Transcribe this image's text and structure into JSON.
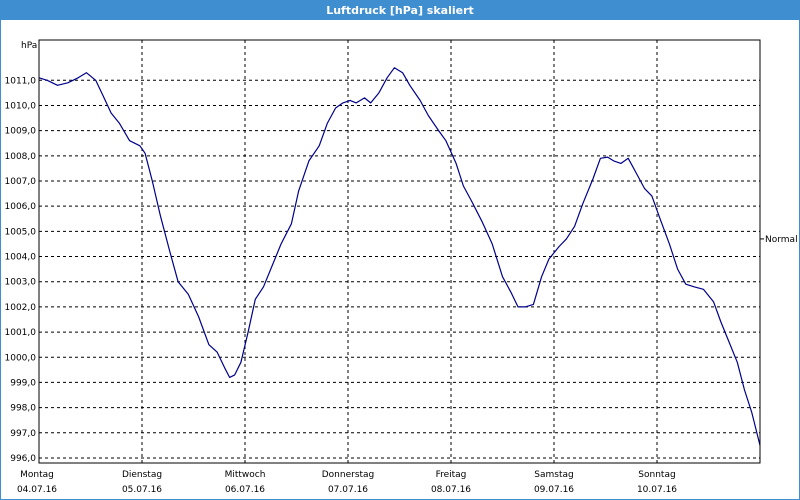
{
  "window": {
    "title": "Luftdruck [hPa] skaliert"
  },
  "chart_data": {
    "type": "line",
    "title": "Luftdruck [hPa] skaliert",
    "ylabel": "hPa",
    "ylim": [
      995.8,
      1012.6
    ],
    "yticks": [
      "996,0",
      "997,0",
      "998,0",
      "999,0",
      "1000,0",
      "1001,0",
      "1002,0",
      "1003,0",
      "1004,0",
      "1005,0",
      "1006,0",
      "1007,0",
      "1008,0",
      "1009,0",
      "1010,0",
      "1011,0"
    ],
    "ytick_values": [
      996,
      997,
      998,
      999,
      1000,
      1001,
      1002,
      1003,
      1004,
      1005,
      1006,
      1007,
      1008,
      1009,
      1010,
      1011
    ],
    "xlim": [
      0,
      7
    ],
    "x_categories": [
      {
        "day": "Montag",
        "date": "04.07.16"
      },
      {
        "day": "Dienstag",
        "date": "05.07.16"
      },
      {
        "day": "Mittwoch",
        "date": "06.07.16"
      },
      {
        "day": "Donnerstag",
        "date": "07.07.16"
      },
      {
        "day": "Freitag",
        "date": "08.07.16"
      },
      {
        "day": "Samstag",
        "date": "09.07.16"
      },
      {
        "day": "Sonntag",
        "date": "10.07.16"
      }
    ],
    "reference_line": {
      "label": "Normal",
      "value": 1004.7
    },
    "grid": true,
    "series": [
      {
        "color": "#00008b",
        "points": [
          [
            0.0,
            1011.1
          ],
          [
            0.08,
            1011.0
          ],
          [
            0.18,
            1010.8
          ],
          [
            0.28,
            1010.9
          ],
          [
            0.38,
            1011.1
          ],
          [
            0.46,
            1011.3
          ],
          [
            0.55,
            1011.0
          ],
          [
            0.62,
            1010.4
          ],
          [
            0.7,
            1009.7
          ],
          [
            0.78,
            1009.3
          ],
          [
            0.88,
            1008.6
          ],
          [
            0.98,
            1008.4
          ],
          [
            1.03,
            1008.1
          ],
          [
            1.1,
            1007.0
          ],
          [
            1.18,
            1005.6
          ],
          [
            1.27,
            1004.2
          ],
          [
            1.35,
            1003.0
          ],
          [
            1.45,
            1002.5
          ],
          [
            1.55,
            1001.6
          ],
          [
            1.65,
            1000.5
          ],
          [
            1.73,
            1000.2
          ],
          [
            1.8,
            999.6
          ],
          [
            1.85,
            999.2
          ],
          [
            1.9,
            999.3
          ],
          [
            1.96,
            999.8
          ],
          [
            2.03,
            1001.0
          ],
          [
            2.1,
            1002.3
          ],
          [
            2.18,
            1002.8
          ],
          [
            2.27,
            1003.7
          ],
          [
            2.35,
            1004.5
          ],
          [
            2.45,
            1005.3
          ],
          [
            2.52,
            1006.6
          ],
          [
            2.62,
            1007.8
          ],
          [
            2.72,
            1008.4
          ],
          [
            2.8,
            1009.3
          ],
          [
            2.88,
            1009.9
          ],
          [
            2.95,
            1010.1
          ],
          [
            3.02,
            1010.2
          ],
          [
            3.08,
            1010.1
          ],
          [
            3.16,
            1010.3
          ],
          [
            3.22,
            1010.1
          ],
          [
            3.3,
            1010.5
          ],
          [
            3.38,
            1011.1
          ],
          [
            3.45,
            1011.5
          ],
          [
            3.53,
            1011.3
          ],
          [
            3.6,
            1010.8
          ],
          [
            3.7,
            1010.2
          ],
          [
            3.78,
            1009.6
          ],
          [
            3.88,
            1009.0
          ],
          [
            3.95,
            1008.6
          ],
          [
            4.05,
            1007.7
          ],
          [
            4.12,
            1006.8
          ],
          [
            4.2,
            1006.2
          ],
          [
            4.3,
            1005.4
          ],
          [
            4.4,
            1004.5
          ],
          [
            4.5,
            1003.2
          ],
          [
            4.58,
            1002.6
          ],
          [
            4.65,
            1002.0
          ],
          [
            4.72,
            1002.0
          ],
          [
            4.8,
            1002.1
          ],
          [
            4.88,
            1003.2
          ],
          [
            4.95,
            1003.9
          ],
          [
            5.05,
            1004.4
          ],
          [
            5.12,
            1004.7
          ],
          [
            5.2,
            1005.2
          ],
          [
            5.28,
            1006.1
          ],
          [
            5.38,
            1007.1
          ],
          [
            5.45,
            1007.9
          ],
          [
            5.52,
            1007.95
          ],
          [
            5.58,
            1007.8
          ],
          [
            5.65,
            1007.7
          ],
          [
            5.72,
            1007.9
          ],
          [
            5.8,
            1007.3
          ],
          [
            5.88,
            1006.7
          ],
          [
            5.95,
            1006.4
          ],
          [
            6.02,
            1005.6
          ],
          [
            6.12,
            1004.5
          ],
          [
            6.2,
            1003.5
          ],
          [
            6.28,
            1002.9
          ],
          [
            6.36,
            1002.8
          ],
          [
            6.45,
            1002.7
          ],
          [
            6.55,
            1002.2
          ],
          [
            6.62,
            1001.4
          ],
          [
            6.7,
            1000.6
          ],
          [
            6.78,
            999.8
          ],
          [
            6.85,
            998.7
          ],
          [
            6.92,
            997.8
          ],
          [
            7.0,
            996.5
          ]
        ]
      }
    ]
  }
}
